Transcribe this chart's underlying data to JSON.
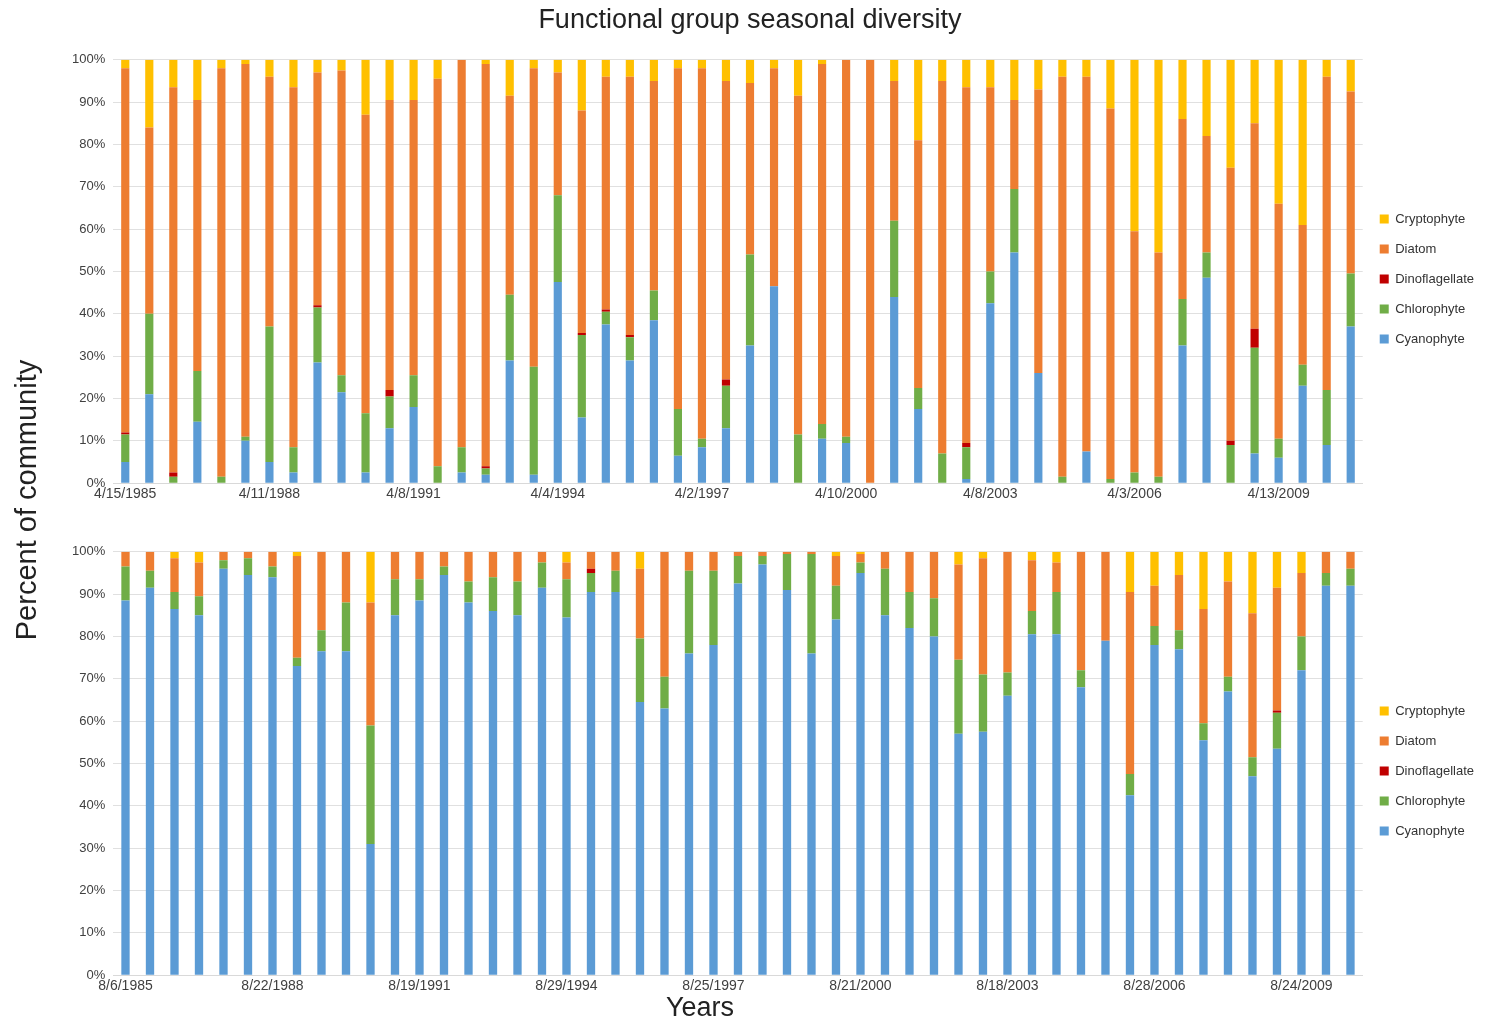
{
  "chart_data": [
    {
      "type": "bar",
      "title": "Functional group seasonal diversity",
      "ylabel": "Percent of community",
      "stacked": true,
      "grid": "y",
      "legend": "right",
      "ylim": [
        0,
        100
      ],
      "yticks": [
        {
          "value": 0,
          "label": "0%"
        },
        {
          "value": 10,
          "label": "10%"
        },
        {
          "value": 20,
          "label": "20%"
        },
        {
          "value": 30,
          "label": "30%"
        },
        {
          "value": 40,
          "label": "40%"
        },
        {
          "value": 50,
          "label": "50%"
        },
        {
          "value": 60,
          "label": "60%"
        },
        {
          "value": 70,
          "label": "70%"
        },
        {
          "value": 80,
          "label": "80%"
        },
        {
          "value": 90,
          "label": "90%"
        },
        {
          "value": 100,
          "label": "100%"
        }
      ],
      "categories": [
        "4/15/1985",
        null,
        null,
        null,
        null,
        null,
        "4/11/1988",
        null,
        null,
        null,
        null,
        null,
        "4/8/1991",
        null,
        null,
        null,
        null,
        null,
        "4/4/1994",
        null,
        null,
        null,
        null,
        null,
        "4/2/1997",
        null,
        null,
        null,
        null,
        null,
        "4/10/2000",
        null,
        null,
        null,
        null,
        null,
        "4/8/2003",
        null,
        null,
        null,
        null,
        null,
        "4/3/2006",
        null,
        null,
        null,
        null,
        null,
        "4/13/2009",
        null,
        null,
        null
      ],
      "series": [
        {
          "name": "Cyanophyte",
          "color": "#5b9bd5",
          "values": [
            5,
            21,
            0,
            14.5,
            0,
            10,
            5,
            2.5,
            28.5,
            21.5,
            2.5,
            13,
            18,
            0,
            2.5,
            2,
            29,
            2,
            47.5,
            15.5,
            37.5,
            29,
            38.5,
            6.5,
            8.5,
            13,
            32.5,
            46.5,
            0,
            10.5,
            9.5,
            0,
            44,
            17.5,
            0,
            1,
            42.5,
            54.5,
            26,
            0,
            7.5,
            0,
            0,
            0,
            32.5,
            48.5,
            0,
            7,
            6,
            23,
            9,
            37
          ]
        },
        {
          "name": "Chlorophyte",
          "color": "#70ad47",
          "values": [
            6.5,
            19,
            1.5,
            12,
            1.5,
            1,
            32,
            6,
            13,
            4,
            14,
            7.5,
            7.5,
            4,
            6,
            1.5,
            15.5,
            25.5,
            20.5,
            19.5,
            3,
            5.5,
            7,
            11,
            2,
            10,
            21.5,
            0,
            11.5,
            3.5,
            1.5,
            0,
            18,
            5,
            7,
            7.5,
            7.5,
            15,
            0,
            1.5,
            0,
            1,
            2.5,
            1.5,
            11,
            6,
            9,
            25,
            4.5,
            5,
            13,
            12.5
          ]
        },
        {
          "name": "Dinoflagellate",
          "color": "#c00000",
          "values": [
            0.5,
            0,
            1,
            0,
            0,
            0,
            0,
            0,
            0.5,
            0,
            0,
            1.5,
            0,
            0,
            0,
            0.5,
            0,
            0,
            0,
            0.5,
            0.5,
            0.5,
            0,
            0,
            0,
            1.5,
            0,
            0,
            0,
            0,
            0,
            0,
            0,
            0,
            0,
            1,
            0,
            0,
            0,
            0,
            0,
            0,
            0,
            0,
            0,
            0,
            1,
            4.5,
            0,
            0,
            0,
            0
          ]
        },
        {
          "name": "Diatom",
          "color": "#ed7d31",
          "values": [
            86,
            44,
            91,
            64,
            96.5,
            88,
            59,
            85,
            55,
            72,
            70.5,
            68.5,
            65,
            91.5,
            91.5,
            95,
            47,
            70.5,
            29,
            52.5,
            55,
            61,
            49.5,
            80.5,
            87.5,
            70.5,
            40.5,
            51.5,
            80,
            85,
            89,
            100,
            33,
            58.5,
            88,
            84,
            43.5,
            21,
            67,
            94.5,
            88.5,
            87.5,
            57,
            53,
            42.5,
            27.5,
            64.5,
            48.5,
            55.5,
            33,
            74,
            43
          ]
        },
        {
          "name": "Cryptophyte",
          "color": "#ffc000",
          "values": [
            2,
            16,
            6.5,
            9.5,
            2,
            1,
            4,
            6.5,
            3,
            2.5,
            13,
            9.5,
            9.5,
            4.5,
            0,
            1,
            8.5,
            2,
            3,
            12,
            4,
            4,
            5,
            2,
            2,
            5,
            5.5,
            2,
            8.5,
            1,
            0,
            0,
            5,
            19,
            5,
            6.5,
            6.5,
            9.5,
            7,
            4,
            4,
            11.5,
            40.5,
            45.5,
            14,
            18,
            25.5,
            15,
            34,
            39,
            4,
            7.5
          ]
        }
      ]
    },
    {
      "type": "bar",
      "xlabel": "Years",
      "stacked": true,
      "grid": "y",
      "legend": "right",
      "ylim": [
        0,
        100
      ],
      "yticks": [
        {
          "value": 0,
          "label": "0%"
        },
        {
          "value": 10,
          "label": "10%"
        },
        {
          "value": 20,
          "label": "20%"
        },
        {
          "value": 30,
          "label": "30%"
        },
        {
          "value": 40,
          "label": "40%"
        },
        {
          "value": 50,
          "label": "50%"
        },
        {
          "value": 60,
          "label": "60%"
        },
        {
          "value": 70,
          "label": "70%"
        },
        {
          "value": 80,
          "label": "80%"
        },
        {
          "value": 90,
          "label": "90%"
        },
        {
          "value": 100,
          "label": "100%"
        }
      ],
      "categories": [
        "8/6/1985",
        null,
        null,
        null,
        null,
        null,
        "8/22/1988",
        null,
        null,
        null,
        null,
        null,
        "8/19/1991",
        null,
        null,
        null,
        null,
        null,
        "8/29/1994",
        null,
        null,
        null,
        null,
        null,
        "8/25/1997",
        null,
        null,
        null,
        null,
        null,
        "8/21/2000",
        null,
        null,
        null,
        null,
        null,
        "8/18/2003",
        null,
        null,
        null,
        null,
        null,
        "8/28/2006",
        null,
        null,
        null,
        null,
        null,
        "8/24/2009",
        null,
        null
      ],
      "series": [
        {
          "name": "Cyanophyte",
          "color": "#5b9bd5",
          "values": [
            88.5,
            91.5,
            86.5,
            85,
            96,
            94.5,
            94,
            73,
            76.5,
            76.5,
            31,
            85,
            88.5,
            94.5,
            88,
            86,
            85,
            91.5,
            84.5,
            90.5,
            90.5,
            64.5,
            63,
            76,
            78,
            92.5,
            97,
            91,
            76,
            84,
            95,
            85,
            82,
            80,
            57,
            57.5,
            66,
            80.5,
            80.5,
            68,
            79,
            42.5,
            78,
            77,
            55.5,
            67,
            47,
            53.5,
            72,
            92,
            92
          ]
        },
        {
          "name": "Chlorophyte",
          "color": "#70ad47",
          "values": [
            8,
            4,
            4,
            4.5,
            2,
            4,
            2.5,
            2,
            5,
            11.5,
            28,
            8.5,
            5,
            2,
            5,
            8,
            8,
            6,
            9,
            4.5,
            5,
            15,
            7.5,
            19.5,
            17.5,
            6.5,
            2,
            8.5,
            23.5,
            8,
            2.5,
            11,
            8.5,
            9,
            17.5,
            13.5,
            5.5,
            5.5,
            10,
            4,
            0,
            5,
            4.5,
            4.5,
            4,
            3.5,
            4.5,
            8.5,
            8,
            3,
            4
          ]
        },
        {
          "name": "Dinoflagellate",
          "color": "#c00000",
          "values": [
            0,
            0,
            0,
            0,
            0,
            0,
            0,
            0,
            0,
            0,
            0,
            0,
            0,
            0,
            0,
            0,
            0,
            0,
            0,
            1,
            0,
            0,
            0,
            0,
            0,
            0,
            0,
            0,
            0,
            0,
            0,
            0,
            0,
            0,
            0,
            0,
            0,
            0,
            0,
            0,
            0,
            0,
            0,
            0,
            0,
            0,
            0,
            0.5,
            0,
            0,
            0
          ]
        },
        {
          "name": "Diatom",
          "color": "#ed7d31",
          "values": [
            3.5,
            4.5,
            8,
            8,
            2,
            1.5,
            3.5,
            24,
            18.5,
            12,
            29,
            6.5,
            6.5,
            3.5,
            7,
            6,
            7,
            2.5,
            4,
            4,
            4.5,
            16.5,
            29.5,
            4.5,
            4.5,
            1,
            1,
            0.5,
            0.5,
            7,
            2,
            4,
            9.5,
            11,
            22.5,
            27.5,
            28.5,
            12,
            7,
            28,
            21,
            43,
            9.5,
            13,
            27,
            22.5,
            34,
            29,
            15,
            5,
            4
          ]
        },
        {
          "name": "Cryptophyte",
          "color": "#ffc000",
          "values": [
            0,
            0,
            1.5,
            2.5,
            0,
            0,
            0,
            1,
            0,
            0,
            12,
            0,
            0,
            0,
            0,
            0,
            0,
            0,
            2.5,
            0,
            0,
            4,
            0,
            0,
            0,
            0,
            0,
            0,
            0,
            1,
            0.5,
            0,
            0,
            0,
            3,
            1.5,
            0,
            2,
            2.5,
            0,
            0,
            9.5,
            8,
            5.5,
            13.5,
            7,
            14.5,
            8.5,
            5,
            0,
            0
          ]
        }
      ]
    }
  ]
}
